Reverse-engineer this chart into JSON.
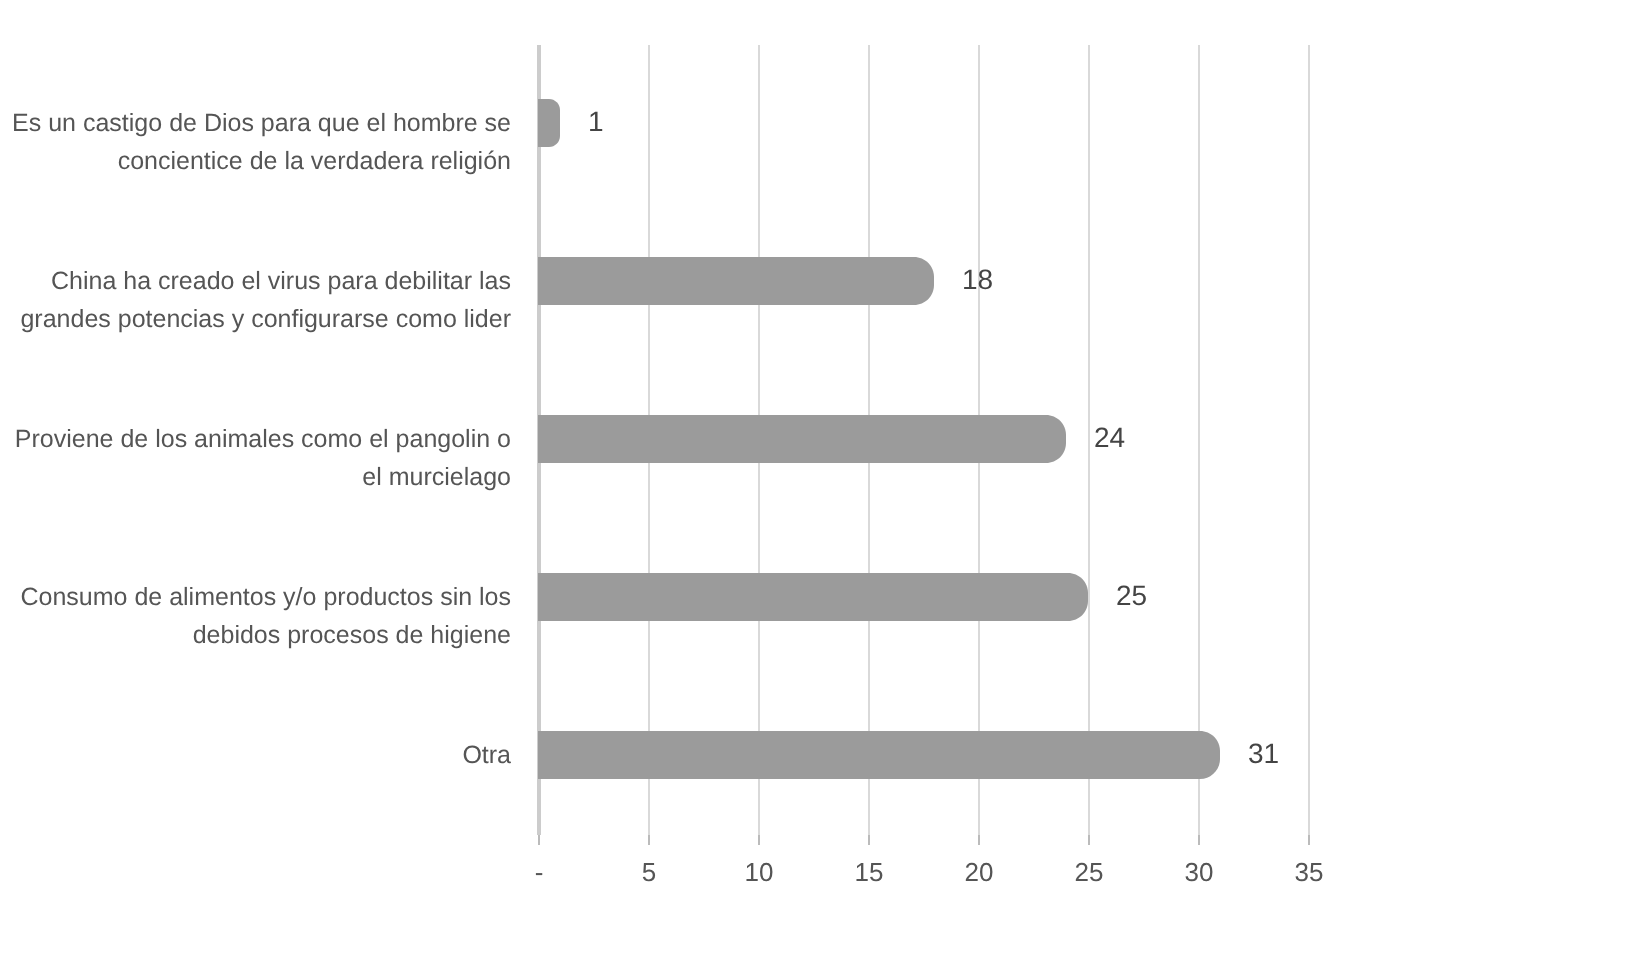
{
  "chart_data": {
    "type": "bar",
    "orientation": "horizontal",
    "categories": [
      "Es un castigo de Dios para que el hombre se\nconcientice de la verdadera religión",
      "China ha creado el virus para debilitar las\ngrandes potencias y configurarse como lider",
      "Proviene de los animales como el pangolin o\nel murcielago",
      "Consumo de alimentos y/o productos sin los\ndebidos procesos de higiene",
      "Otra"
    ],
    "values": [
      1,
      18,
      24,
      25,
      31
    ],
    "color": "#9b9b9b",
    "xlim": [
      0,
      35
    ],
    "xticks": [
      {
        "value": 0,
        "label": "-"
      },
      5,
      10,
      15,
      20,
      25,
      30,
      35
    ],
    "grid": "x",
    "data_labels": true
  }
}
